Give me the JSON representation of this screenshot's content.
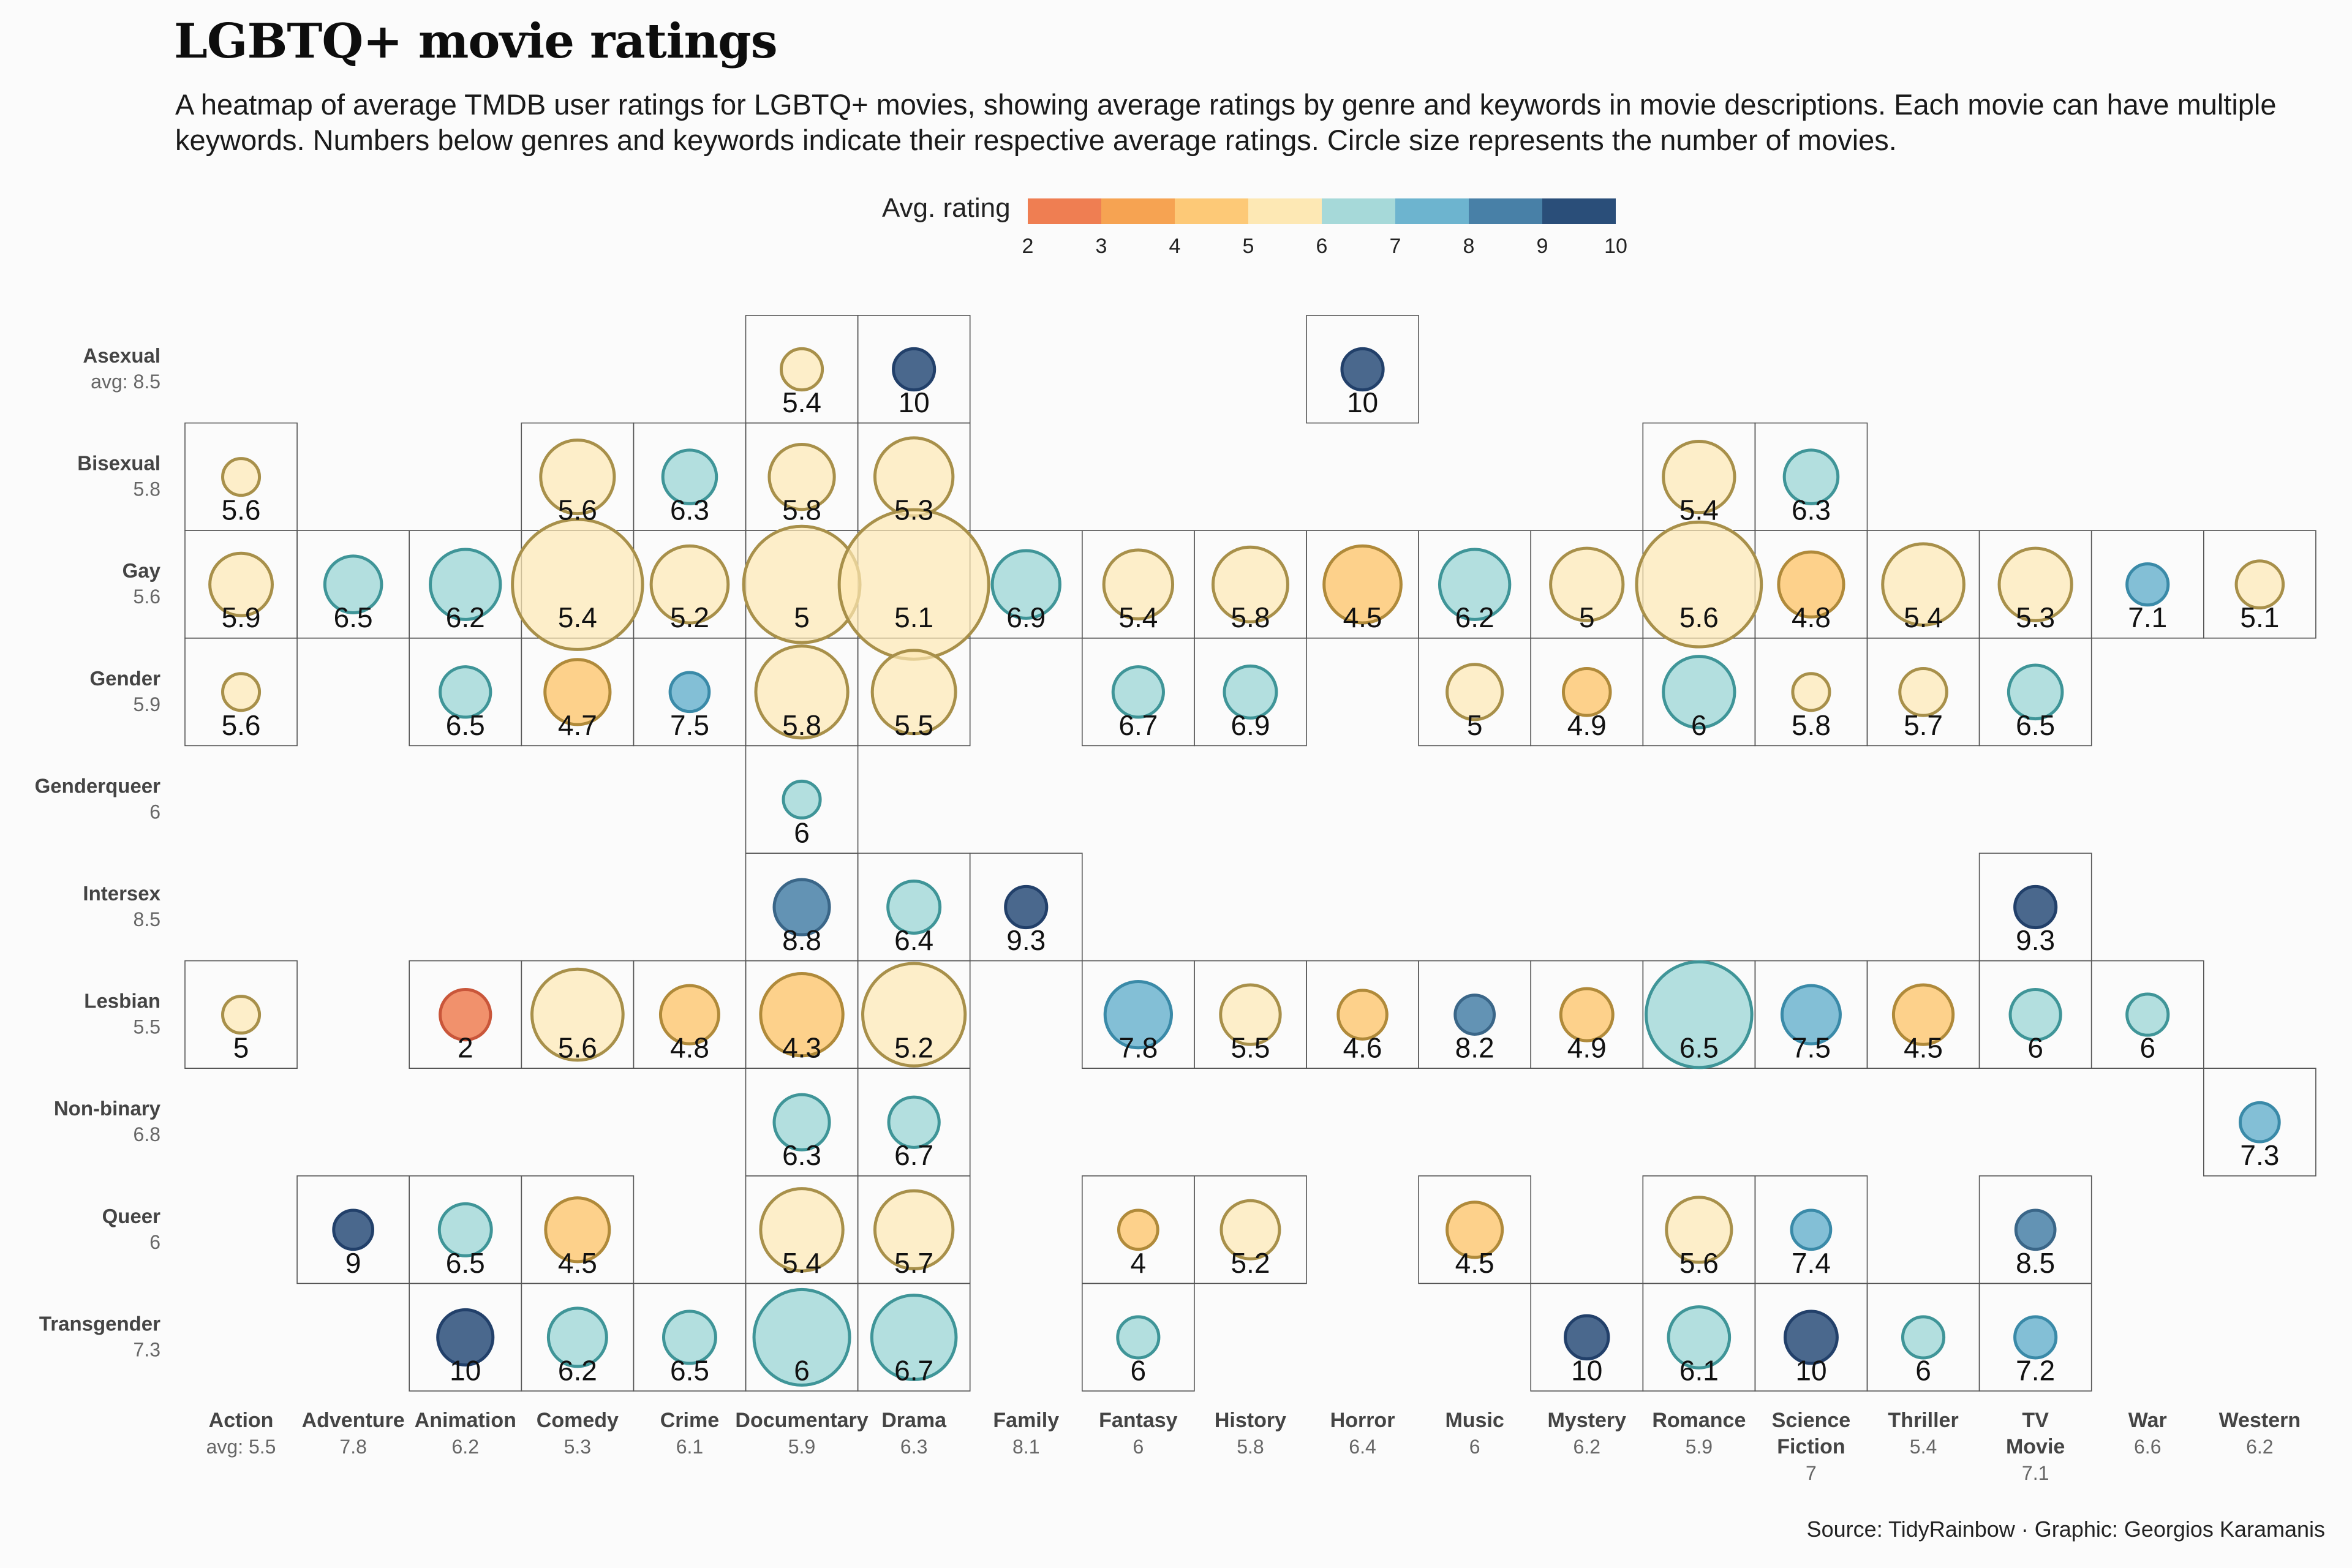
{
  "header": {
    "title": "LGBTQ+ movie ratings",
    "subtitle": "A heatmap of average TMDB user ratings for LGBTQ+ movies, showing average ratings by genre and keywords in movie descriptions. Each movie can have multiple keywords. Numbers below genres and keywords indicate their respective average ratings. Circle size represents the number of movies.",
    "source": "Source: TidyRainbow · Graphic: Georgios Karamanis"
  },
  "legend": {
    "title": "Avg. rating",
    "ticks": [
      "2",
      "3",
      "4",
      "5",
      "6",
      "7",
      "8",
      "9",
      "10"
    ],
    "colors": [
      "#ef7e52",
      "#f6a352",
      "#fdc977",
      "#fde8b4",
      "#a6d9d9",
      "#6db4cf",
      "#4880a7",
      "#2a4e79"
    ]
  },
  "chart_data": {
    "type": "heatmap",
    "title": "LGBTQ+ movie ratings",
    "x_label_prefix": "avg: ",
    "genres": [
      {
        "name": "Action",
        "avg": "5.5"
      },
      {
        "name": "Adventure",
        "avg": "7.8"
      },
      {
        "name": "Animation",
        "avg": "6.2"
      },
      {
        "name": "Comedy",
        "avg": "5.3"
      },
      {
        "name": "Crime",
        "avg": "6.1"
      },
      {
        "name": "Documentary",
        "avg": "5.9"
      },
      {
        "name": "Drama",
        "avg": "6.3"
      },
      {
        "name": "Family",
        "avg": "8.1"
      },
      {
        "name": "Fantasy",
        "avg": "6"
      },
      {
        "name": "History",
        "avg": "5.8"
      },
      {
        "name": "Horror",
        "avg": "6.4"
      },
      {
        "name": "Music",
        "avg": "6"
      },
      {
        "name": "Mystery",
        "avg": "6.2"
      },
      {
        "name": "Romance",
        "avg": "5.9"
      },
      {
        "name": "Science Fiction",
        "avg": "7"
      },
      {
        "name": "Thriller",
        "avg": "5.4"
      },
      {
        "name": "TV Movie",
        "avg": "7.1"
      },
      {
        "name": "War",
        "avg": "6.6"
      },
      {
        "name": "Western",
        "avg": "6.2"
      }
    ],
    "keywords": [
      {
        "name": "Asexual",
        "avg": "8.5"
      },
      {
        "name": "Bisexual",
        "avg": "5.8"
      },
      {
        "name": "Gay",
        "avg": "5.6"
      },
      {
        "name": "Gender",
        "avg": "5.9"
      },
      {
        "name": "Genderqueer",
        "avg": "6"
      },
      {
        "name": "Intersex",
        "avg": "8.5"
      },
      {
        "name": "Lesbian",
        "avg": "5.5"
      },
      {
        "name": "Non-binary",
        "avg": "6.8"
      },
      {
        "name": "Queer",
        "avg": "6"
      },
      {
        "name": "Transgender",
        "avg": "7.3"
      }
    ],
    "size_note": "circle size = relative number of movies (approximate, 0-1 scale)",
    "cells": [
      {
        "keyword": "Asexual",
        "genre": "Documentary",
        "rating": 5.4,
        "label": "5.4",
        "n": 0.1
      },
      {
        "keyword": "Asexual",
        "genre": "Drama",
        "rating": 10,
        "label": "10",
        "n": 0.1
      },
      {
        "keyword": "Asexual",
        "genre": "Horror",
        "rating": 10,
        "label": "10",
        "n": 0.1
      },
      {
        "keyword": "Bisexual",
        "genre": "Action",
        "rating": 5.6,
        "label": "5.6",
        "n": 0.08
      },
      {
        "keyword": "Bisexual",
        "genre": "Comedy",
        "rating": 5.6,
        "label": "5.6",
        "n": 0.32
      },
      {
        "keyword": "Bisexual",
        "genre": "Crime",
        "rating": 6.3,
        "label": "6.3",
        "n": 0.17
      },
      {
        "keyword": "Bisexual",
        "genre": "Documentary",
        "rating": 5.8,
        "label": "5.8",
        "n": 0.25
      },
      {
        "keyword": "Bisexual",
        "genre": "Drama",
        "rating": 5.3,
        "label": "5.3",
        "n": 0.36
      },
      {
        "keyword": "Bisexual",
        "genre": "Romance",
        "rating": 5.4,
        "label": "5.4",
        "n": 0.3
      },
      {
        "keyword": "Bisexual",
        "genre": "Science Fiction",
        "rating": 6.3,
        "label": "6.3",
        "n": 0.17
      },
      {
        "keyword": "Gay",
        "genre": "Action",
        "rating": 5.9,
        "label": "5.9",
        "n": 0.23
      },
      {
        "keyword": "Gay",
        "genre": "Adventure",
        "rating": 6.5,
        "label": "6.5",
        "n": 0.19
      },
      {
        "keyword": "Gay",
        "genre": "Animation",
        "rating": 6.2,
        "label": "6.2",
        "n": 0.29
      },
      {
        "keyword": "Gay",
        "genre": "Comedy",
        "rating": 5.4,
        "label": "5.4",
        "n": 1.0
      },
      {
        "keyword": "Gay",
        "genre": "Crime",
        "rating": 5.2,
        "label": "5.2",
        "n": 0.35
      },
      {
        "keyword": "Gay",
        "genre": "Documentary",
        "rating": 5,
        "label": "5",
        "n": 0.8
      },
      {
        "keyword": "Gay",
        "genre": "Drama",
        "rating": 5.1,
        "label": "5.1",
        "n": 1.32
      },
      {
        "keyword": "Gay",
        "genre": "Family",
        "rating": 6.9,
        "label": "6.9",
        "n": 0.27
      },
      {
        "keyword": "Gay",
        "genre": "Fantasy",
        "rating": 5.4,
        "label": "5.4",
        "n": 0.28
      },
      {
        "keyword": "Gay",
        "genre": "History",
        "rating": 5.8,
        "label": "5.8",
        "n": 0.33
      },
      {
        "keyword": "Gay",
        "genre": "Horror",
        "rating": 4.5,
        "label": "4.5",
        "n": 0.35
      },
      {
        "keyword": "Gay",
        "genre": "Music",
        "rating": 6.2,
        "label": "6.2",
        "n": 0.29
      },
      {
        "keyword": "Gay",
        "genre": "Mystery",
        "rating": 5,
        "label": "5",
        "n": 0.31
      },
      {
        "keyword": "Gay",
        "genre": "Romance",
        "rating": 5.6,
        "label": "5.6",
        "n": 0.92
      },
      {
        "keyword": "Gay",
        "genre": "Science Fiction",
        "rating": 4.8,
        "label": "4.8",
        "n": 0.25
      },
      {
        "keyword": "Gay",
        "genre": "Thriller",
        "rating": 5.4,
        "label": "5.4",
        "n": 0.39
      },
      {
        "keyword": "Gay",
        "genre": "TV Movie",
        "rating": 5.3,
        "label": "5.3",
        "n": 0.31
      },
      {
        "keyword": "Gay",
        "genre": "War",
        "rating": 7.1,
        "label": "7.1",
        "n": 0.1
      },
      {
        "keyword": "Gay",
        "genre": "Western",
        "rating": 5.1,
        "label": "5.1",
        "n": 0.13
      },
      {
        "keyword": "Gender",
        "genre": "Action",
        "rating": 5.6,
        "label": "5.6",
        "n": 0.08
      },
      {
        "keyword": "Gender",
        "genre": "Animation",
        "rating": 6.5,
        "label": "6.5",
        "n": 0.15
      },
      {
        "keyword": "Gender",
        "genre": "Comedy",
        "rating": 4.7,
        "label": "4.7",
        "n": 0.25
      },
      {
        "keyword": "Gender",
        "genre": "Crime",
        "rating": 7.5,
        "label": "7.5",
        "n": 0.09
      },
      {
        "keyword": "Gender",
        "genre": "Documentary",
        "rating": 5.8,
        "label": "5.8",
        "n": 0.5
      },
      {
        "keyword": "Gender",
        "genre": "Drama",
        "rating": 5.5,
        "label": "5.5",
        "n": 0.41
      },
      {
        "keyword": "Gender",
        "genre": "Fantasy",
        "rating": 6.7,
        "label": "6.7",
        "n": 0.15
      },
      {
        "keyword": "Gender",
        "genre": "History",
        "rating": 6.9,
        "label": "6.9",
        "n": 0.16
      },
      {
        "keyword": "Gender",
        "genre": "Music",
        "rating": 5,
        "label": "5",
        "n": 0.18
      },
      {
        "keyword": "Gender",
        "genre": "Mystery",
        "rating": 4.9,
        "label": "4.9",
        "n": 0.13
      },
      {
        "keyword": "Gender",
        "genre": "Romance",
        "rating": 6,
        "label": "6",
        "n": 0.3
      },
      {
        "keyword": "Gender",
        "genre": "Science Fiction",
        "rating": 5.8,
        "label": "5.8",
        "n": 0.08
      },
      {
        "keyword": "Gender",
        "genre": "Thriller",
        "rating": 5.7,
        "label": "5.7",
        "n": 0.13
      },
      {
        "keyword": "Gender",
        "genre": "TV Movie",
        "rating": 6.5,
        "label": "6.5",
        "n": 0.17
      },
      {
        "keyword": "Genderqueer",
        "genre": "Documentary",
        "rating": 6,
        "label": "6",
        "n": 0.08
      },
      {
        "keyword": "Intersex",
        "genre": "Documentary",
        "rating": 8.8,
        "label": "8.8",
        "n": 0.18
      },
      {
        "keyword": "Intersex",
        "genre": "Drama",
        "rating": 6.4,
        "label": "6.4",
        "n": 0.16
      },
      {
        "keyword": "Intersex",
        "genre": "Family",
        "rating": 9.3,
        "label": "9.3",
        "n": 0.1
      },
      {
        "keyword": "Intersex",
        "genre": "TV Movie",
        "rating": 9.3,
        "label": "9.3",
        "n": 0.1
      },
      {
        "keyword": "Lesbian",
        "genre": "Action",
        "rating": 5,
        "label": "5",
        "n": 0.08
      },
      {
        "keyword": "Lesbian",
        "genre": "Animation",
        "rating": 2,
        "label": "2",
        "n": 0.15
      },
      {
        "keyword": "Lesbian",
        "genre": "Comedy",
        "rating": 5.6,
        "label": "5.6",
        "n": 0.49
      },
      {
        "keyword": "Lesbian",
        "genre": "Crime",
        "rating": 4.8,
        "label": "4.8",
        "n": 0.2
      },
      {
        "keyword": "Lesbian",
        "genre": "Documentary",
        "rating": 4.3,
        "label": "4.3",
        "n": 0.4
      },
      {
        "keyword": "Lesbian",
        "genre": "Drama",
        "rating": 5.2,
        "label": "5.2",
        "n": 0.62
      },
      {
        "keyword": "Lesbian",
        "genre": "Fantasy",
        "rating": 7.8,
        "label": "7.8",
        "n": 0.26
      },
      {
        "keyword": "Lesbian",
        "genre": "History",
        "rating": 5.5,
        "label": "5.5",
        "n": 0.21
      },
      {
        "keyword": "Lesbian",
        "genre": "Horror",
        "rating": 4.6,
        "label": "4.6",
        "n": 0.14
      },
      {
        "keyword": "Lesbian",
        "genre": "Music",
        "rating": 8.2,
        "label": "8.2",
        "n": 0.09
      },
      {
        "keyword": "Lesbian",
        "genre": "Mystery",
        "rating": 4.9,
        "label": "4.9",
        "n": 0.16
      },
      {
        "keyword": "Lesbian",
        "genre": "Romance",
        "rating": 6.5,
        "label": "6.5",
        "n": 0.66
      },
      {
        "keyword": "Lesbian",
        "genre": "Science Fiction",
        "rating": 7.5,
        "label": "7.5",
        "n": 0.2
      },
      {
        "keyword": "Lesbian",
        "genre": "Thriller",
        "rating": 4.5,
        "label": "4.5",
        "n": 0.21
      },
      {
        "keyword": "Lesbian",
        "genre": "TV Movie",
        "rating": 6,
        "label": "6",
        "n": 0.15
      },
      {
        "keyword": "Lesbian",
        "genre": "War",
        "rating": 6,
        "label": "6",
        "n": 0.1
      },
      {
        "keyword": "Non-binary",
        "genre": "Documentary",
        "rating": 6.3,
        "label": "6.3",
        "n": 0.18
      },
      {
        "keyword": "Non-binary",
        "genre": "Drama",
        "rating": 6.7,
        "label": "6.7",
        "n": 0.15
      },
      {
        "keyword": "Non-binary",
        "genre": "Western",
        "rating": 7.3,
        "label": "7.3",
        "n": 0.09
      },
      {
        "keyword": "Queer",
        "genre": "Adventure",
        "rating": 9,
        "label": "9",
        "n": 0.09
      },
      {
        "keyword": "Queer",
        "genre": "Animation",
        "rating": 6.5,
        "label": "6.5",
        "n": 0.16
      },
      {
        "keyword": "Queer",
        "genre": "Comedy",
        "rating": 4.5,
        "label": "4.5",
        "n": 0.24
      },
      {
        "keyword": "Queer",
        "genre": "Documentary",
        "rating": 5.4,
        "label": "5.4",
        "n": 0.4
      },
      {
        "keyword": "Queer",
        "genre": "Drama",
        "rating": 5.7,
        "label": "5.7",
        "n": 0.36
      },
      {
        "keyword": "Queer",
        "genre": "Fantasy",
        "rating": 4,
        "label": "4",
        "n": 0.09
      },
      {
        "keyword": "Queer",
        "genre": "History",
        "rating": 5.2,
        "label": "5.2",
        "n": 0.2
      },
      {
        "keyword": "Queer",
        "genre": "Music",
        "rating": 4.5,
        "label": "4.5",
        "n": 0.18
      },
      {
        "keyword": "Queer",
        "genre": "Romance",
        "rating": 5.6,
        "label": "5.6",
        "n": 0.25
      },
      {
        "keyword": "Queer",
        "genre": "Science Fiction",
        "rating": 7.4,
        "label": "7.4",
        "n": 0.09
      },
      {
        "keyword": "Queer",
        "genre": "TV Movie",
        "rating": 8.5,
        "label": "8.5",
        "n": 0.09
      },
      {
        "keyword": "Transgender",
        "genre": "Animation",
        "rating": 10,
        "label": "10",
        "n": 0.18
      },
      {
        "keyword": "Transgender",
        "genre": "Comedy",
        "rating": 6.2,
        "label": "6.2",
        "n": 0.2
      },
      {
        "keyword": "Transgender",
        "genre": "Crime",
        "rating": 6.5,
        "label": "6.5",
        "n": 0.16
      },
      {
        "keyword": "Transgender",
        "genre": "Documentary",
        "rating": 6,
        "label": "6",
        "n": 0.54
      },
      {
        "keyword": "Transgender",
        "genre": "Drama",
        "rating": 6.7,
        "label": "6.7",
        "n": 0.42
      },
      {
        "keyword": "Transgender",
        "genre": "Fantasy",
        "rating": 6,
        "label": "6",
        "n": 0.1
      },
      {
        "keyword": "Transgender",
        "genre": "Mystery",
        "rating": 10,
        "label": "10",
        "n": 0.11
      },
      {
        "keyword": "Transgender",
        "genre": "Romance",
        "rating": 6.1,
        "label": "6.1",
        "n": 0.22
      },
      {
        "keyword": "Transgender",
        "genre": "Science Fiction",
        "rating": 10,
        "label": "10",
        "n": 0.16
      },
      {
        "keyword": "Transgender",
        "genre": "Thriller",
        "rating": 6,
        "label": "6",
        "n": 0.1
      },
      {
        "keyword": "Transgender",
        "genre": "TV Movie",
        "rating": 7.2,
        "label": "7.2",
        "n": 0.1
      }
    ]
  }
}
